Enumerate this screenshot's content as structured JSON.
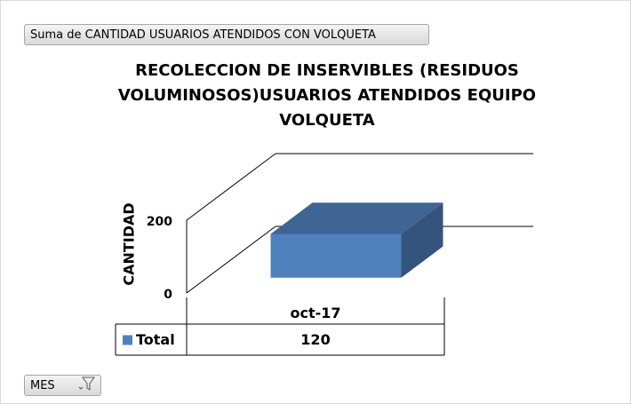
{
  "chart_data": {
    "type": "bar3d",
    "field_button": "Suma de CANTIDAD USUARIOS ATENDIDOS CON VOLQUETA",
    "filter_button": "MES",
    "title": "RECOLECCION DE INSERVIBLES (RESIDUOS VOLUMINOSOS)USUARIOS ATENDIDOS EQUIPO VOLQUETA",
    "y_label": "CANTIDAD",
    "categories": [
      "oct-17"
    ],
    "series": [
      {
        "name": "Total",
        "color": "#4f81bd",
        "values": [
          120
        ]
      }
    ],
    "ylim": [
      0,
      200
    ],
    "yticks": [
      0,
      200
    ],
    "grid": true,
    "data_table": true
  }
}
